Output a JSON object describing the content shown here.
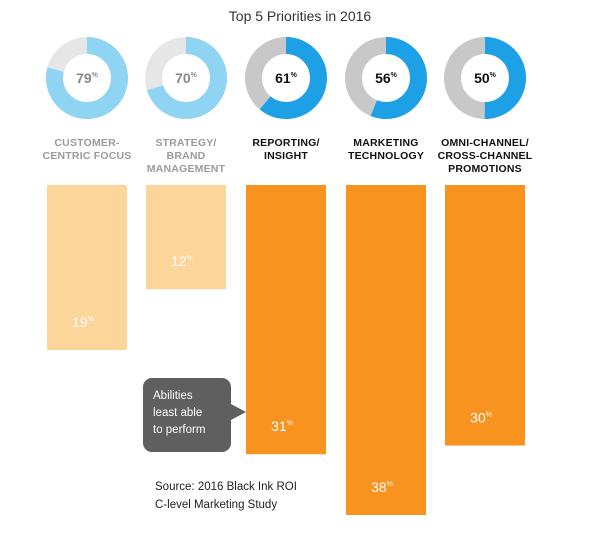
{
  "chart_data": {
    "type": "bar",
    "title": "Top 5 Priorities in 2016",
    "categories": [
      [
        "CUSTOMER-",
        "CENTRIC FOCUS"
      ],
      [
        "STRATEGY/",
        "BRAND",
        "MANAGEMENT"
      ],
      [
        "REPORTING/",
        "INSIGHT"
      ],
      [
        "MARKETING",
        "TECHNOLOGY"
      ],
      [
        "OMNI-CHANNEL/",
        "CROSS-CHANNEL",
        "PROMOTIONS"
      ]
    ],
    "series": [
      {
        "values": [
          79,
          70,
          61,
          56,
          50
        ]
      },
      {
        "values": [
          19,
          12,
          31,
          38,
          30
        ]
      }
    ],
    "percent_symbol": "%",
    "highlighted": [
      false,
      false,
      true,
      true,
      true
    ],
    "ylim": [
      0,
      40
    ],
    "colors": {
      "donut_muted_fill": "#8fd4f3",
      "donut_highlight_fill": "#1ea0e6",
      "donut_muted_track": "#e6e6e6",
      "donut_highlight_track": "#c8c8c8",
      "bar_muted": "#fbd59a",
      "bar_highlight": "#f7931e",
      "label_muted": "#9b9b9b",
      "label_highlight": "#111111",
      "callout_bg": "#5f5f5f"
    },
    "annotations": {
      "callout": [
        "Abilities",
        "least able",
        "to perform"
      ],
      "source": [
        "Source: 2016 Black Ink ROI",
        "C-level Marketing Study"
      ]
    }
  }
}
